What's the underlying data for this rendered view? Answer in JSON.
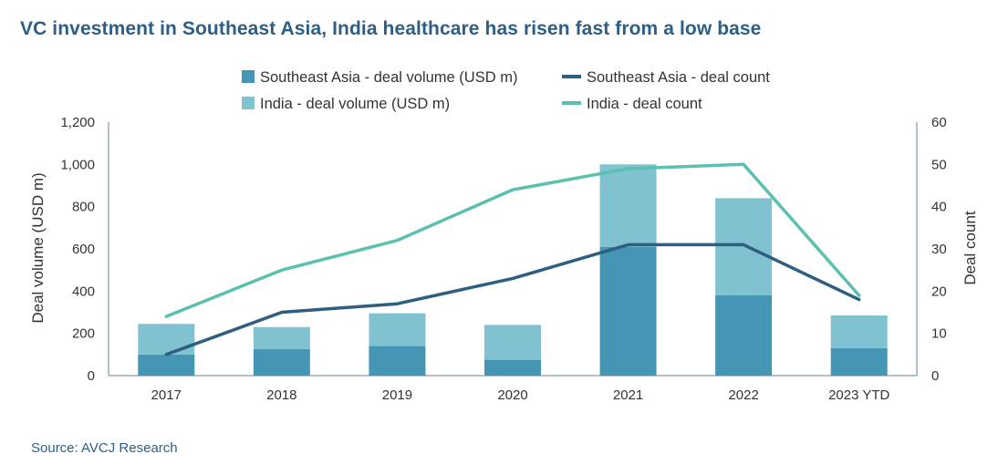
{
  "title": "VC investment in Southeast Asia, India healthcare has risen fast from a low base",
  "source": "Source: AVCJ Research",
  "colors": {
    "sea_bar": "#4595b4",
    "india_bar": "#80c2d0",
    "sea_line": "#2e5e80",
    "india_line": "#5cc0ae",
    "axis": "#9aaab8"
  },
  "chart_data": {
    "type": "bar",
    "stacked": true,
    "categories": [
      "2017",
      "2018",
      "2019",
      "2020",
      "2021",
      "2022",
      "2023 YTD"
    ],
    "series": [
      {
        "name": "Southeast Asia - deal volume (USD m)",
        "axis": "left",
        "kind": "bar",
        "values": [
          100,
          125,
          140,
          75,
          610,
          380,
          130
        ]
      },
      {
        "name": "India - deal volume (USD m)",
        "axis": "left",
        "kind": "bar",
        "values": [
          145,
          105,
          155,
          165,
          390,
          460,
          155
        ]
      },
      {
        "name": "Southeast Asia - deal count",
        "axis": "right",
        "kind": "line",
        "values": [
          5,
          15,
          17,
          23,
          31,
          31,
          18
        ]
      },
      {
        "name": "India - deal count",
        "axis": "right",
        "kind": "line",
        "values": [
          14,
          25,
          32,
          44,
          49,
          50,
          19
        ]
      }
    ],
    "ylabel": "Deal volume (USD m)",
    "ylabel_right": "Deal count",
    "ylim": [
      0,
      1200
    ],
    "ylim_right": [
      0,
      60
    ],
    "yticks": [
      "0",
      "200",
      "400",
      "600",
      "800",
      "1,000",
      "1,200"
    ],
    "yticks_right": [
      "0",
      "10",
      "20",
      "30",
      "40",
      "50",
      "60"
    ],
    "legend": [
      "Southeast Asia - deal volume (USD m)",
      "Southeast Asia - deal count",
      "India - deal volume (USD m)",
      "India - deal count"
    ],
    "legend_position": "top"
  }
}
